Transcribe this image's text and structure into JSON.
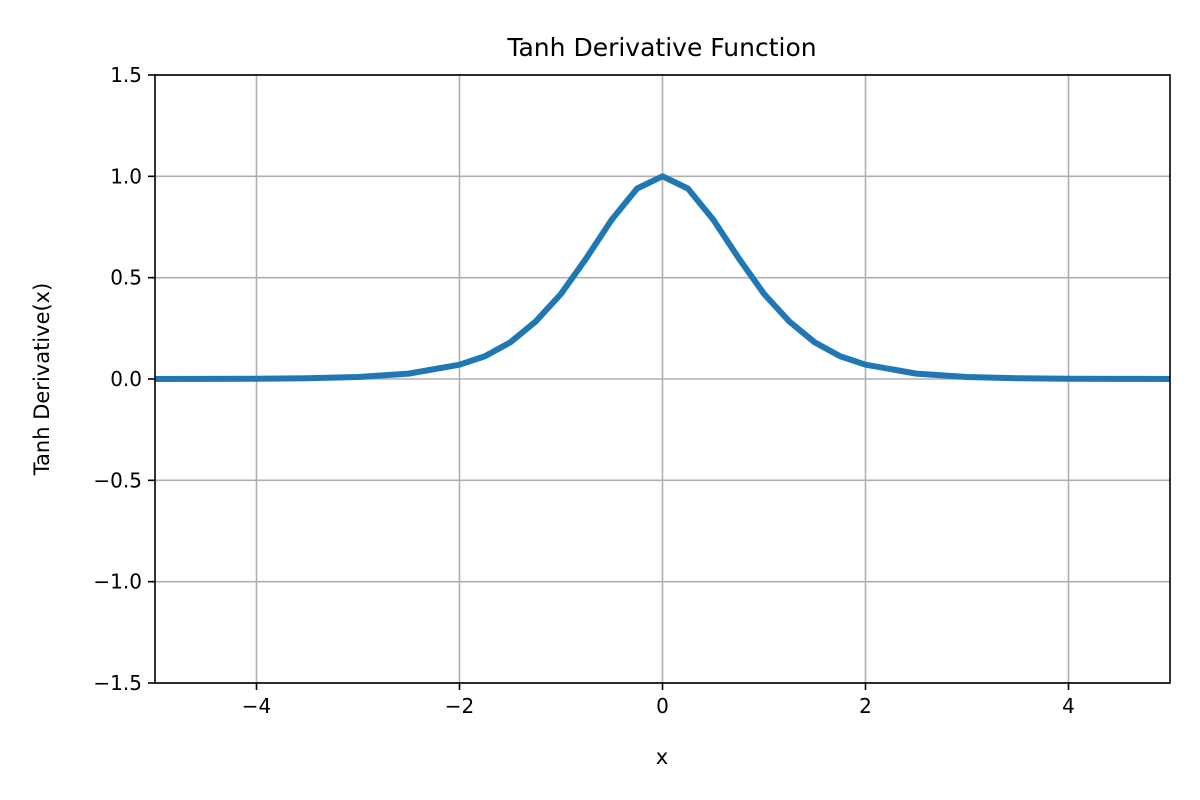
{
  "chart_data": {
    "type": "line",
    "title": "Tanh Derivative Function",
    "xlabel": "x",
    "ylabel": "Tanh Derivative(x)",
    "xlim": [
      -5,
      5
    ],
    "ylim": [
      -1.5,
      1.5
    ],
    "grid": true,
    "xticks": [
      -4,
      -2,
      0,
      2,
      4
    ],
    "xtick_labels": [
      "−4",
      "−2",
      "0",
      "2",
      "4"
    ],
    "yticks": [
      -1.5,
      -1.0,
      -0.5,
      0.0,
      0.5,
      1.0,
      1.5
    ],
    "ytick_labels": [
      "−1.5",
      "−1.0",
      "−0.5",
      "0.0",
      "0.5",
      "1.0",
      "1.5"
    ],
    "series": [
      {
        "color": "#1f77b4",
        "x": [
          -5,
          -4.5,
          -4,
          -3.5,
          -3,
          -2.5,
          -2,
          -1.75,
          -1.5,
          -1.25,
          -1,
          -0.75,
          -0.5,
          -0.25,
          0,
          0.25,
          0.5,
          0.75,
          1,
          1.25,
          1.5,
          1.75,
          2,
          2.5,
          3,
          3.5,
          4,
          4.5,
          5
        ],
        "y": [
          0.0002,
          0.0005,
          0.0013,
          0.0036,
          0.0099,
          0.0266,
          0.0707,
          0.1123,
          0.1807,
          0.2834,
          0.42,
          0.5966,
          0.7864,
          0.9399,
          1.0,
          0.9399,
          0.7864,
          0.5966,
          0.42,
          0.2834,
          0.1807,
          0.1123,
          0.0707,
          0.0266,
          0.0099,
          0.0036,
          0.0013,
          0.0005,
          0.0002
        ]
      }
    ]
  }
}
